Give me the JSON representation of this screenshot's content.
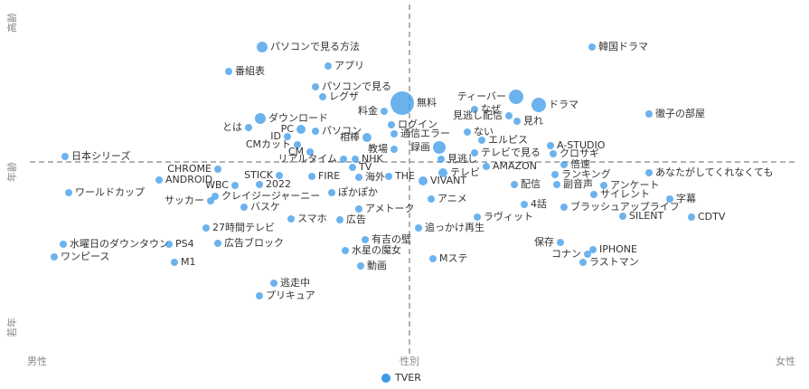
{
  "chart_data": {
    "type": "scatter",
    "xlim": [
      -430,
      430
    ],
    "ylim": [
      -216,
      174
    ],
    "x_axis_labels": {
      "left": "男性",
      "center": "性別",
      "right": "女性"
    },
    "y_axis_labels": {
      "top": "高齢",
      "center": "年齢",
      "bottom": "若年"
    },
    "series": [
      {
        "name": "TVER",
        "color": "#3b9ae8",
        "labels": [
          "パソコンで見る方法",
          "番組表",
          "アプリ",
          "パソコンで見る",
          "レグザ",
          "無料",
          "料金",
          "ログイン",
          "ティーバー",
          "なぜ",
          "見逃し配信",
          "ドラマ",
          "見れ",
          "韓国ドラマ",
          "徹子の部屋",
          "ダウンロード",
          "とは",
          "PC",
          "パソコン",
          "ID",
          "相棒",
          "CMカット",
          "通信エラー",
          "ない",
          "エルピス",
          "教場",
          "CM",
          "録画",
          "見逃し",
          "テレビで見る",
          "A-STUDIO",
          "クロサギ",
          "リアルタイム",
          "NHK",
          "日本シリーズ",
          "TV",
          "CHROME",
          "ANDROID",
          "FIRE",
          "海外",
          "THE",
          "倍速",
          "ランキング",
          "テレビ",
          "AMAZON",
          "あなたがしてくれなくても",
          "STICK",
          "WBC",
          "2022",
          "VIVANT",
          "配信",
          "副音声",
          "アンケート",
          "ワールドカップ",
          "サッカー",
          "クレイジージャーニー",
          "ぽかぽか",
          "アニメ",
          "サイレント",
          "字幕",
          "4話",
          "バスケ",
          "アメトーク",
          "ブラッシュアップライフ",
          "ラヴィット",
          "SILENT",
          "CDTV",
          "スマホ",
          "広告",
          "追っかけ再生",
          "27時間テレビ",
          "広告ブロック",
          "有吉の壁",
          "水曜日のダウンタウン",
          "ワンピース",
          "PS4",
          "水星の魔女",
          "保存",
          "コナン",
          "IPHONE",
          "ラストマン",
          "Mステ",
          "M1",
          "動画",
          "逃走中",
          "プリキュア"
        ],
        "x": [
          -163,
          -200,
          -90,
          -104,
          -96,
          -8,
          -28,
          -20,
          118,
          72,
          110,
          143,
          119,
          202,
          265,
          -165,
          -178,
          -120,
          -104,
          -135,
          -47,
          -124,
          -17,
          64,
          80,
          -17,
          -110,
          33,
          35,
          72,
          156,
          159,
          -73,
          -60,
          -381,
          -63,
          -212,
          -277,
          -108,
          -56,
          -23,
          171,
          161,
          37,
          85,
          265,
          -144,
          -193,
          -166,
          15,
          116,
          163,
          215,
          -377,
          -220,
          -215,
          -86,
          24,
          204,
          288,
          127,
          -183,
          -56,
          171,
          75,
          236,
          312,
          -131,
          -77,
          10,
          -225,
          -212,
          -49,
          -383,
          -393,
          -266,
          -71,
          167,
          197,
          203,
          192,
          26,
          -260,
          -54,
          -150,
          -166
        ],
        "values": [
          127,
          100,
          106,
          83,
          72,
          65,
          56,
          41,
          72,
          58,
          51,
          63,
          45,
          127,
          53,
          48,
          38,
          36,
          34,
          28,
          27,
          19,
          31,
          33,
          24,
          14,
          11,
          16,
          3,
          10,
          18,
          9,
          3,
          3,
          6,
          -6,
          -8,
          -20,
          -16,
          -17,
          -16,
          -3,
          -14,
          -12,
          -5,
          -12,
          -15,
          -26,
          -25,
          -21,
          -25,
          -25,
          -26,
          -34,
          -43,
          -38,
          -34,
          -41,
          -36,
          -41,
          -47,
          -50,
          -52,
          -50,
          -61,
          -60,
          -61,
          -63,
          -64,
          -73,
          -73,
          -90,
          -86,
          -91,
          -105,
          -91,
          -98,
          -89,
          -102,
          -97,
          -111,
          -107,
          -111,
          -115,
          -134,
          -148
        ],
        "sizes": [
          6,
          4,
          4,
          4,
          4,
          13,
          4,
          4,
          8,
          4,
          4,
          8,
          4,
          4,
          4,
          6,
          4,
          5,
          4,
          4,
          5,
          4,
          4,
          4,
          4,
          4,
          4,
          7,
          4,
          4,
          4,
          4,
          4,
          4,
          4,
          4,
          4,
          4,
          4,
          4,
          4,
          4,
          4,
          5,
          4,
          4,
          4,
          4,
          4,
          5,
          4,
          4,
          4,
          4,
          4,
          4,
          4,
          4,
          4,
          4,
          4,
          4,
          4,
          4,
          4,
          4,
          4,
          4,
          4,
          4,
          4,
          4,
          4,
          4,
          4,
          4,
          4,
          4,
          4,
          4,
          4,
          4,
          4,
          4,
          4,
          4
        ]
      }
    ]
  }
}
